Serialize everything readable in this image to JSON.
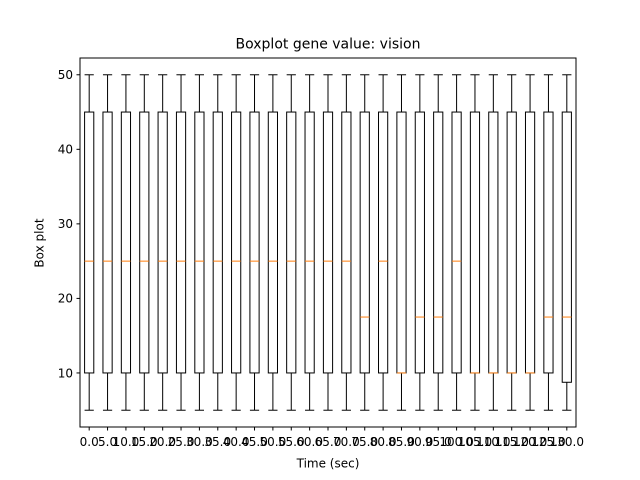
{
  "chart_data": {
    "type": "box",
    "title": "Boxplot gene value: vision",
    "xlabel": "Time (sec)",
    "ylabel": "Box plot",
    "ylim": [
      2.75,
      52.25
    ],
    "yticks": [
      10,
      20,
      30,
      40,
      50
    ],
    "grid": false,
    "categories": [
      "0.0",
      "5.0",
      "10.0",
      "15.0",
      "20.0",
      "25.0",
      "30.0",
      "35.0",
      "40.0",
      "45.0",
      "50.0",
      "55.0",
      "60.0",
      "65.0",
      "70.0",
      "75.0",
      "80.0",
      "85.0",
      "90.0",
      "95.0",
      "100.0",
      "105.0",
      "110.0",
      "115.0",
      "120.0",
      "125.0",
      "130.0"
    ],
    "boxes": [
      {
        "whislo": 5,
        "q1": 10,
        "med": 25,
        "q3": 45,
        "whishi": 50
      },
      {
        "whislo": 5,
        "q1": 10,
        "med": 25,
        "q3": 45,
        "whishi": 50
      },
      {
        "whislo": 5,
        "q1": 10,
        "med": 25,
        "q3": 45,
        "whishi": 50
      },
      {
        "whislo": 5,
        "q1": 10,
        "med": 25,
        "q3": 45,
        "whishi": 50
      },
      {
        "whislo": 5,
        "q1": 10,
        "med": 25,
        "q3": 45,
        "whishi": 50
      },
      {
        "whislo": 5,
        "q1": 10,
        "med": 25,
        "q3": 45,
        "whishi": 50
      },
      {
        "whislo": 5,
        "q1": 10,
        "med": 25,
        "q3": 45,
        "whishi": 50
      },
      {
        "whislo": 5,
        "q1": 10,
        "med": 25,
        "q3": 45,
        "whishi": 50
      },
      {
        "whislo": 5,
        "q1": 10,
        "med": 25,
        "q3": 45,
        "whishi": 50
      },
      {
        "whislo": 5,
        "q1": 10,
        "med": 25,
        "q3": 45,
        "whishi": 50
      },
      {
        "whislo": 5,
        "q1": 10,
        "med": 25,
        "q3": 45,
        "whishi": 50
      },
      {
        "whislo": 5,
        "q1": 10,
        "med": 25,
        "q3": 45,
        "whishi": 50
      },
      {
        "whislo": 5,
        "q1": 10,
        "med": 25,
        "q3": 45,
        "whishi": 50
      },
      {
        "whislo": 5,
        "q1": 10,
        "med": 25,
        "q3": 45,
        "whishi": 50
      },
      {
        "whislo": 5,
        "q1": 10,
        "med": 25,
        "q3": 45,
        "whishi": 50
      },
      {
        "whislo": 5,
        "q1": 10,
        "med": 17.5,
        "q3": 45,
        "whishi": 50
      },
      {
        "whislo": 5,
        "q1": 10,
        "med": 25,
        "q3": 45,
        "whishi": 50
      },
      {
        "whislo": 5,
        "q1": 10,
        "med": 10,
        "q3": 45,
        "whishi": 50
      },
      {
        "whislo": 5,
        "q1": 10,
        "med": 17.5,
        "q3": 45,
        "whishi": 50
      },
      {
        "whislo": 5,
        "q1": 10,
        "med": 17.5,
        "q3": 45,
        "whishi": 50
      },
      {
        "whislo": 5,
        "q1": 10,
        "med": 25,
        "q3": 45,
        "whishi": 50
      },
      {
        "whislo": 5,
        "q1": 10,
        "med": 10,
        "q3": 45,
        "whishi": 50
      },
      {
        "whislo": 5,
        "q1": 10,
        "med": 10,
        "q3": 45,
        "whishi": 50
      },
      {
        "whislo": 5,
        "q1": 10,
        "med": 10,
        "q3": 45,
        "whishi": 50
      },
      {
        "whislo": 5,
        "q1": 10,
        "med": 10,
        "q3": 45,
        "whishi": 50
      },
      {
        "whislo": 5,
        "q1": 10,
        "med": 17.5,
        "q3": 45,
        "whishi": 50
      },
      {
        "whislo": 5,
        "q1": 8.75,
        "med": 17.5,
        "q3": 45,
        "whishi": 50
      }
    ],
    "colors": {
      "box": "#000000",
      "median": "#ff7f0e",
      "axis": "#000000",
      "background": "#ffffff"
    }
  }
}
